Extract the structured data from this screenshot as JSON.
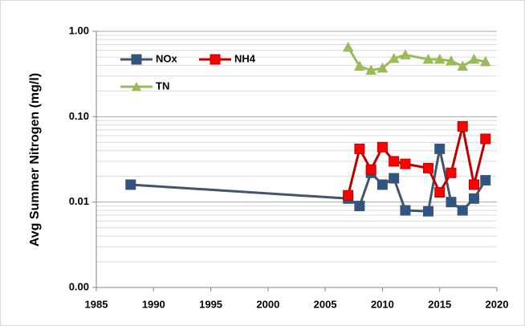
{
  "chart_data": {
    "type": "line",
    "y_label": "Avg Summer Nitrogen (mg/l)",
    "xlim": [
      1985,
      2020
    ],
    "xticks": [
      1985,
      1990,
      1995,
      2000,
      2005,
      2010,
      2015,
      2020
    ],
    "ylim": [
      0.001,
      1
    ],
    "log_y": true,
    "grid": true,
    "legend": "upper left",
    "yticks": [
      {
        "value": 0.001,
        "label": "0.00"
      },
      {
        "value": 0.01,
        "label": "0.01"
      },
      {
        "value": 0.1,
        "label": "0.10"
      },
      {
        "value": 1,
        "label": "1.00"
      }
    ],
    "series": [
      {
        "name": "NOx",
        "color": "#44546a",
        "marker_color": "#2f5584",
        "marker": "square",
        "x": [
          1988,
          2007,
          2008,
          2009,
          2010,
          2011,
          2012,
          2014,
          2015,
          2016,
          2017,
          2018,
          2019
        ],
        "values": [
          0.016,
          0.011,
          0.009,
          0.022,
          0.016,
          0.019,
          0.008,
          0.0078,
          0.042,
          0.01,
          0.008,
          0.011,
          0.018
        ]
      },
      {
        "name": "NH4",
        "color": "#c00000",
        "marker_color": "#ff0000",
        "marker": "square",
        "x": [
          2007,
          2008,
          2009,
          2010,
          2011,
          2012,
          2014,
          2015,
          2016,
          2017,
          2018,
          2019
        ],
        "values": [
          0.012,
          0.042,
          0.024,
          0.044,
          0.03,
          0.028,
          0.025,
          0.013,
          0.022,
          0.077,
          0.016,
          0.055
        ]
      },
      {
        "name": "TN",
        "color": "#9bbb59",
        "marker_color": "#9bbb59",
        "marker": "triangle",
        "x": [
          2007,
          2008,
          2009,
          2010,
          2011,
          2012,
          2014,
          2015,
          2016,
          2017,
          2018,
          2019
        ],
        "values": [
          0.65,
          0.39,
          0.35,
          0.37,
          0.48,
          0.53,
          0.47,
          0.47,
          0.45,
          0.39,
          0.47,
          0.44
        ]
      }
    ]
  }
}
